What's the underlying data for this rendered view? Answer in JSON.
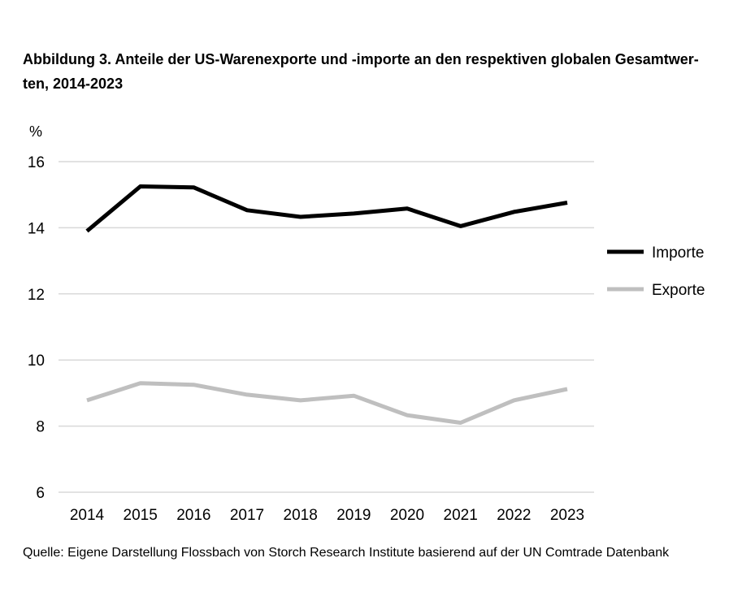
{
  "title": {
    "line1": "Abbildung 3. Anteile der US-Warenexporte und -importe an den respektiven globalen Gesamtwer-",
    "line2": "ten, 2014-2023"
  },
  "source": "Quelle: Eigene Darstellung Flossbach von Storch Research Institute basierend auf der UN Comtrade Datenbank",
  "chart_data": {
    "type": "line",
    "title": "Abbildung 3. Anteile der US-Warenexporte und -importe an den respektiven globalen Gesamtwerten, 2014-2023",
    "xlabel": "",
    "ylabel": "%",
    "ylim": [
      6,
      16
    ],
    "yticks": [
      "6",
      "8",
      "10",
      "12",
      "14",
      "16"
    ],
    "categories": [
      "2014",
      "2015",
      "2016",
      "2017",
      "2018",
      "2019",
      "2020",
      "2021",
      "2022",
      "2023"
    ],
    "grid": "horizontal",
    "legend_position": "right",
    "series": [
      {
        "name": "Importe",
        "color": "#000000",
        "values": [
          13.9,
          15.25,
          15.22,
          14.53,
          14.33,
          14.43,
          14.58,
          14.05,
          14.48,
          14.76
        ]
      },
      {
        "name": "Exporte",
        "color": "#bfbfbf",
        "values": [
          8.78,
          9.3,
          9.25,
          8.95,
          8.78,
          8.92,
          8.33,
          8.1,
          8.78,
          9.12
        ]
      }
    ]
  }
}
